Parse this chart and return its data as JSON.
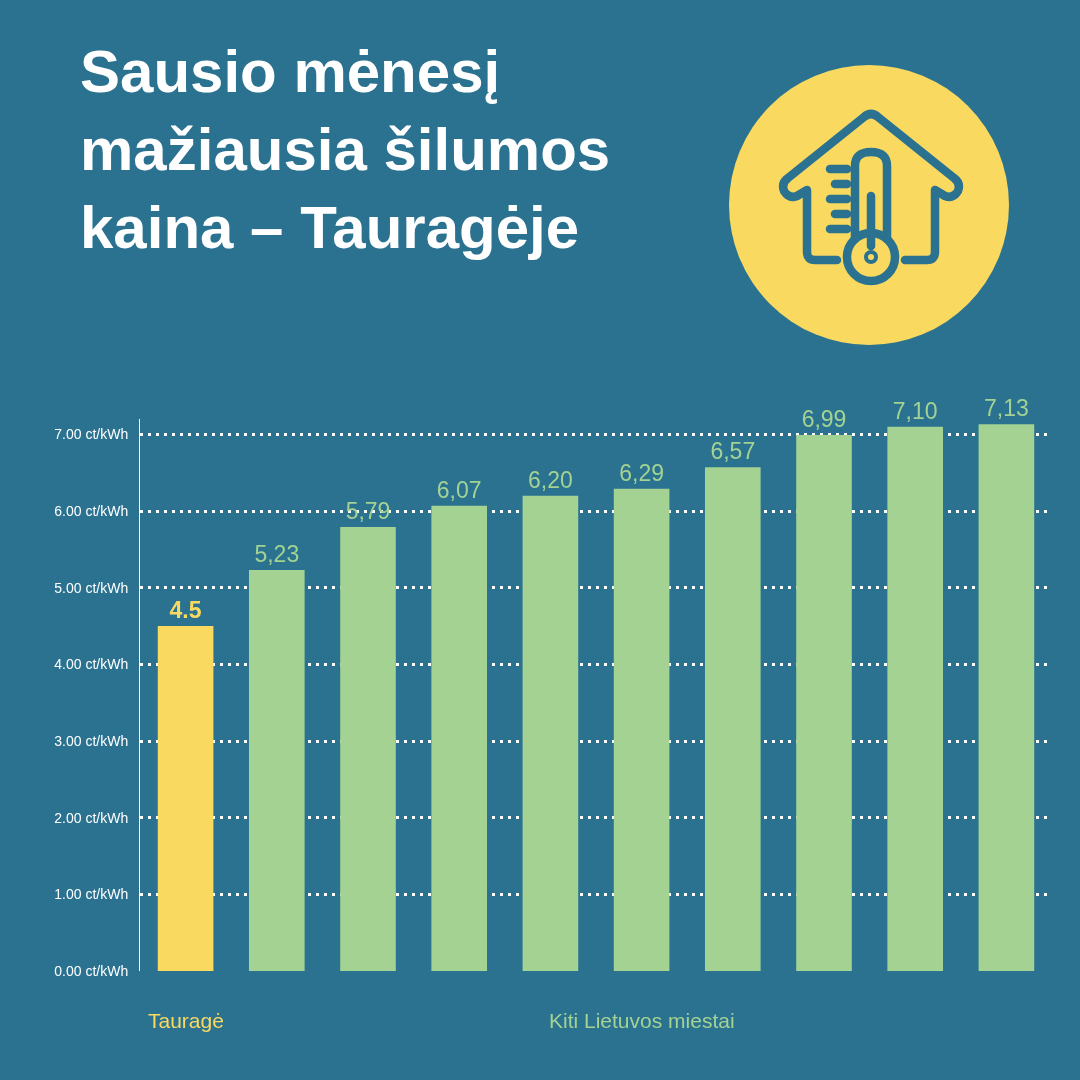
{
  "chart_data": {
    "type": "bar",
    "title": "Sausio mėnesį mažiausia šilumos kaina – Tauragėje",
    "categories": [
      null,
      null,
      null,
      null,
      null,
      null,
      null,
      null,
      null,
      null
    ],
    "series": [
      {
        "name": "Tauragė",
        "color": "#f9d95f",
        "values": [
          4.5,
          null,
          null,
          null,
          null,
          null,
          null,
          null,
          null,
          null
        ],
        "value_labels": [
          "4.5",
          null,
          null,
          null,
          null,
          null,
          null,
          null,
          null,
          null
        ]
      },
      {
        "name": "Kiti Lietuvos miestai",
        "color": "#a3d293",
        "values": [
          null,
          5.23,
          5.79,
          6.07,
          6.2,
          6.29,
          6.57,
          6.99,
          7.1,
          7.13
        ],
        "value_labels": [
          null,
          "5,23",
          "5,79",
          "6,07",
          "6,20",
          "6,29",
          "6,57",
          "6,99",
          "7,10",
          "7,13"
        ]
      }
    ],
    "ylim": [
      0,
      7.2
    ],
    "yticks": [
      {
        "value": 0,
        "label": "0.00 ct/kWh"
      },
      {
        "value": 1,
        "label": "1.00 ct/kWh"
      },
      {
        "value": 2,
        "label": "2.00 ct/kWh"
      },
      {
        "value": 3,
        "label": "3.00 ct/kWh"
      },
      {
        "value": 4,
        "label": "4.00 ct/kWh"
      },
      {
        "value": 5,
        "label": "5.00 ct/kWh"
      },
      {
        "value": 6,
        "label": "6.00 ct/kWh"
      },
      {
        "value": 7,
        "label": "7.00 ct/kWh"
      }
    ],
    "grid": "y",
    "tick_labels": "y"
  }
}
